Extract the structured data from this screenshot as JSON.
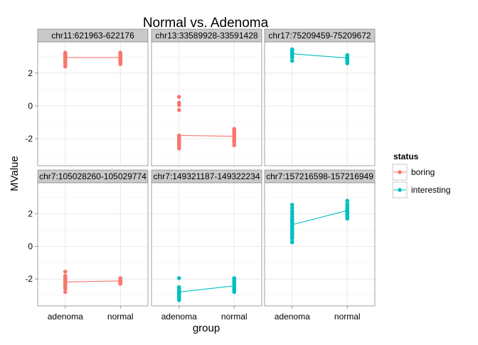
{
  "chart_data": {
    "type": "scatter",
    "title": "Normal vs. Adenoma",
    "xlabel": "group",
    "ylabel": "MValue",
    "x_categories": [
      "adenoma",
      "normal"
    ],
    "y_ticks": [
      -2,
      0,
      2
    ],
    "ylim": [
      -3.65,
      3.9
    ],
    "grid": true,
    "legend": {
      "title": "status",
      "position": "right",
      "entries": [
        {
          "name": "boring",
          "color": "#F8766D"
        },
        {
          "name": "interesting",
          "color": "#00BFC4"
        }
      ]
    },
    "facets": [
      {
        "label": "chr11:621963-622176",
        "status": "boring",
        "series": [
          {
            "group": "adenoma",
            "values": [
              3.25,
              3.2,
              3.15,
              3.1,
              3.05,
              3.0,
              2.95,
              2.9,
              2.85,
              2.8,
              2.75,
              2.7,
              2.6,
              2.5,
              2.4
            ]
          },
          {
            "group": "normal",
            "values": [
              3.25,
              3.2,
              3.15,
              3.1,
              3.05,
              3.0,
              2.95,
              2.9,
              2.85,
              2.8,
              2.75,
              2.7,
              2.6,
              2.55
            ]
          }
        ],
        "means": [
          2.95,
          2.95
        ]
      },
      {
        "label": "chr13:33589928-33591428",
        "status": "boring",
        "series": [
          {
            "group": "adenoma",
            "values": [
              0.55,
              0.2,
              0.05,
              -0.25,
              -1.8,
              -1.9,
              -2.0,
              -2.1,
              -2.15,
              -2.2,
              -2.25,
              -2.3,
              -2.4,
              -2.5,
              -2.6
            ]
          },
          {
            "group": "normal",
            "values": [
              -1.4,
              -1.5,
              -1.6,
              -1.7,
              -1.8,
              -1.9,
              -2.0,
              -2.05,
              -2.1,
              -2.15,
              -2.25,
              -2.4
            ]
          }
        ],
        "means": [
          -1.8,
          -1.85
        ]
      },
      {
        "label": "chr17:75209459-75209672",
        "status": "interesting",
        "series": [
          {
            "group": "adenoma",
            "values": [
              3.45,
              3.4,
              3.35,
              3.3,
              3.25,
              3.2,
              3.15,
              3.1,
              3.0,
              2.95,
              2.75
            ]
          },
          {
            "group": "normal",
            "values": [
              3.1,
              3.05,
              3.0,
              2.95,
              2.9,
              2.85,
              2.8,
              2.75,
              2.7,
              2.65,
              2.6
            ]
          }
        ],
        "means": [
          3.18,
          2.92
        ]
      },
      {
        "label": "chr7:105028260-105029774",
        "status": "boring",
        "series": [
          {
            "group": "adenoma",
            "values": [
              -1.55,
              -1.8,
              -1.9,
              -2.0,
              -2.05,
              -2.1,
              -2.15,
              -2.2,
              -2.25,
              -2.3,
              -2.4,
              -2.5,
              -2.6,
              -2.8
            ]
          },
          {
            "group": "normal",
            "values": [
              -1.95,
              -2.0,
              -2.05,
              -2.1,
              -2.15,
              -2.2,
              -2.25,
              -2.3
            ]
          }
        ],
        "means": [
          -2.18,
          -2.12
        ]
      },
      {
        "label": "chr7:149321187-149322234",
        "status": "interesting",
        "series": [
          {
            "group": "adenoma",
            "values": [
              -1.95,
              -2.5,
              -2.6,
              -2.7,
              -2.75,
              -2.8,
              -2.85,
              -2.9,
              -2.95,
              -3.0,
              -3.05,
              -3.1,
              -3.2,
              -3.3
            ]
          },
          {
            "group": "normal",
            "values": [
              -1.95,
              -2.05,
              -2.15,
              -2.25,
              -2.35,
              -2.45,
              -2.5,
              -2.6,
              -2.7,
              -2.8
            ]
          }
        ],
        "means": [
          -2.8,
          -2.42
        ]
      },
      {
        "label": "chr7:157216598-157216949",
        "status": "interesting",
        "series": [
          {
            "group": "adenoma",
            "values": [
              2.55,
              2.35,
              2.15,
              2.0,
              1.85,
              1.7,
              1.6,
              1.5,
              1.4,
              1.3,
              1.2,
              1.1,
              1.0,
              0.9,
              0.8,
              0.7,
              0.6,
              0.5,
              0.3,
              0.25
            ]
          },
          {
            "group": "normal",
            "values": [
              2.8,
              2.6,
              2.5,
              2.4,
              2.3,
              2.25,
              2.2,
              2.15,
              2.1,
              2.05,
              2.0,
              1.95,
              1.9,
              1.85,
              1.8,
              1.7
            ]
          }
        ],
        "means": [
          1.33,
          2.2
        ]
      }
    ]
  }
}
